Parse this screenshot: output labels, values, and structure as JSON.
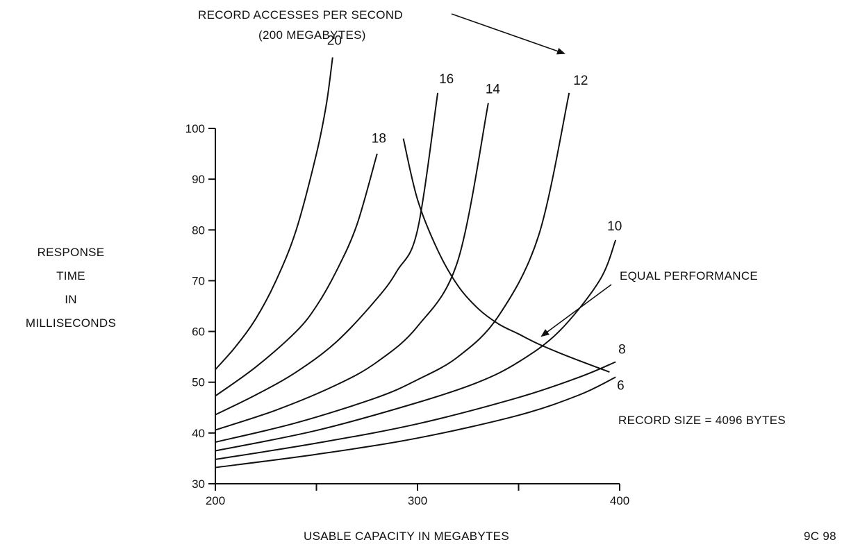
{
  "chart_data": {
    "type": "line",
    "title": "RECORD ACCESSES PER SECOND",
    "subtitle": "(200 MEGABYTES)",
    "xlabel": "USABLE CAPACITY IN MEGABYTES",
    "ylabel_lines": [
      "RESPONSE",
      "TIME",
      "IN",
      "MILLISECONDS"
    ],
    "xlim": [
      200,
      400
    ],
    "ylim": [
      30,
      100
    ],
    "x_ticks": [
      200,
      250,
      300,
      350,
      400
    ],
    "x_tick_labels": [
      "200",
      "",
      "300",
      "",
      "400"
    ],
    "y_ticks": [
      30,
      40,
      50,
      60,
      70,
      80,
      90,
      100
    ],
    "y_tick_labels": [
      "30",
      "40",
      "50",
      "60",
      "70",
      "80",
      "90",
      "100"
    ],
    "grid": false,
    "series": [
      {
        "name": "20",
        "x": [
          200,
          210,
          220,
          230,
          240,
          250,
          255,
          258
        ],
        "y": [
          52.5,
          57,
          62.5,
          70,
          80,
          95,
          105,
          114
        ]
      },
      {
        "name": "18",
        "x": [
          200,
          220,
          240,
          250,
          260,
          270,
          280
        ],
        "y": [
          47.3,
          53,
          60,
          65,
          72,
          81,
          95
        ]
      },
      {
        "name": "16",
        "x": [
          200,
          220,
          240,
          260,
          280,
          290,
          300,
          310
        ],
        "y": [
          43.6,
          47.5,
          52,
          58,
          66.5,
          72,
          80,
          107
        ]
      },
      {
        "name": "14",
        "x": [
          200,
          230,
          260,
          280,
          300,
          320,
          335
        ],
        "y": [
          40.6,
          44.5,
          49.5,
          54,
          61,
          74,
          105
        ]
      },
      {
        "name": "12",
        "x": [
          200,
          240,
          280,
          300,
          320,
          340,
          360,
          375
        ],
        "y": [
          38.2,
          42,
          47,
          50.5,
          55,
          63,
          79,
          107
        ]
      },
      {
        "name": "10",
        "x": [
          200,
          250,
          300,
          330,
          350,
          370,
          390,
          398
        ],
        "y": [
          36.5,
          40.5,
          46,
          50,
          54,
          60,
          70,
          78
        ]
      },
      {
        "name": "8",
        "x": [
          200,
          250,
          300,
          350,
          380,
          398
        ],
        "y": [
          34.8,
          38,
          41.8,
          47,
          51,
          54
        ]
      },
      {
        "name": "6",
        "x": [
          200,
          250,
          300,
          350,
          380,
          398
        ],
        "y": [
          33.2,
          35.8,
          39,
          43.5,
          47.5,
          51
        ]
      },
      {
        "name": "EQUAL PERFORMANCE",
        "x": [
          293,
          300,
          310,
          320,
          330,
          340,
          350,
          360,
          375,
          395
        ],
        "y": [
          98,
          86,
          76,
          69,
          64.5,
          61.5,
          59.5,
          57.5,
          55,
          52
        ]
      }
    ],
    "annotations": [
      "EQUAL PERFORMANCE",
      "RECORD SIZE = 4096 BYTES",
      "9C 98"
    ]
  }
}
